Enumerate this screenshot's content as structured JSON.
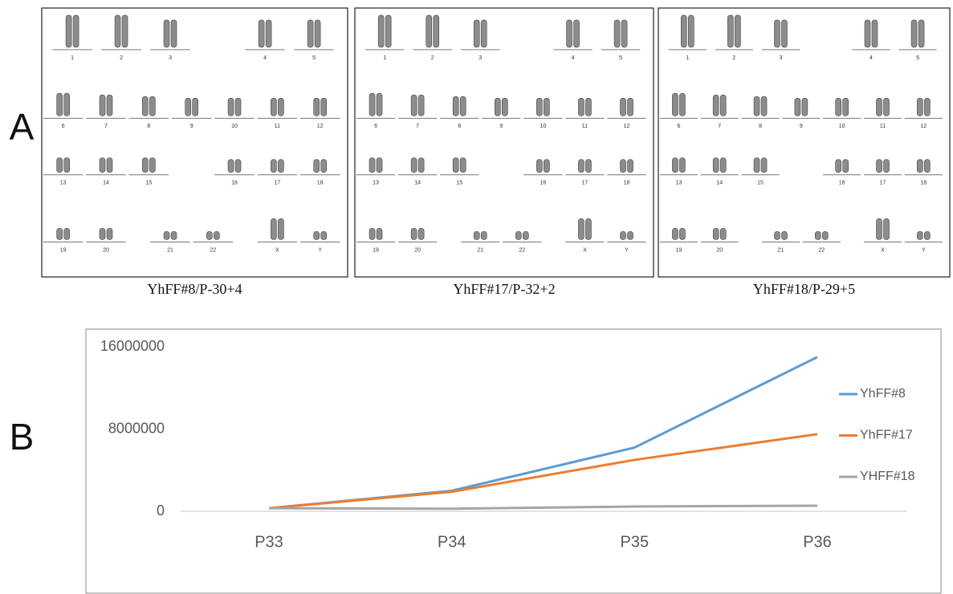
{
  "panel_a": {
    "label": "A",
    "karyotypes": [
      {
        "caption": "YhFF#8/P-30+4",
        "chromosomes": [
          "1",
          "2",
          "3",
          "4",
          "5",
          "6",
          "7",
          "8",
          "9",
          "10",
          "11",
          "12",
          "13",
          "14",
          "15",
          "16",
          "17",
          "18",
          "19",
          "20",
          "21",
          "22",
          "X",
          "Y"
        ]
      },
      {
        "caption": "YhFF#17/P-32+2",
        "chromosomes": [
          "1",
          "2",
          "3",
          "4",
          "5",
          "6",
          "7",
          "8",
          "9",
          "10",
          "11",
          "12",
          "13",
          "14",
          "15",
          "16",
          "17",
          "18",
          "19",
          "20",
          "21",
          "22",
          "X",
          "Y"
        ]
      },
      {
        "caption": "YhFF#18/P-29+5",
        "chromosomes": [
          "1",
          "2",
          "3",
          "4",
          "5",
          "6",
          "7",
          "8",
          "9",
          "10",
          "11",
          "12",
          "13",
          "14",
          "15",
          "16",
          "17",
          "18",
          "19",
          "20",
          "21",
          "22",
          "X",
          "Y"
        ]
      }
    ]
  },
  "panel_b": {
    "label": "B"
  },
  "chart_data": {
    "type": "line",
    "categories": [
      "P33",
      "P34",
      "P35",
      "P36"
    ],
    "series": [
      {
        "name": "YhFF#8",
        "color": "#5b9bd5",
        "values": [
          300000,
          2000000,
          6200000,
          15000000
        ]
      },
      {
        "name": "YhFF#17",
        "color": "#ed7d31",
        "values": [
          300000,
          1900000,
          5000000,
          7500000
        ]
      },
      {
        "name": "YHFF#18",
        "color": "#a5a5a5",
        "values": [
          300000,
          250000,
          470000,
          550000
        ]
      }
    ],
    "ylim": [
      0,
      16000000
    ],
    "yticks": [
      0,
      8000000,
      16000000
    ],
    "grid": false,
    "legend": "right"
  }
}
